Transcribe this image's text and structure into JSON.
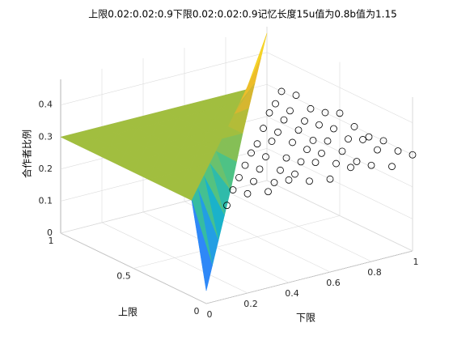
{
  "chart_data": {
    "type": "surface3d",
    "title": "上限0.02:0.02:0.9下限0.02:0.02:0.9记忆长度15u值为0.8b值为1.15",
    "xlabel": "下限",
    "ylabel": "上限",
    "zlabel": "合作者比例",
    "x": [
      0,
      0.1,
      0.2,
      0.3,
      0.4,
      0.5,
      0.6,
      0.7,
      0.8,
      0.9,
      1
    ],
    "y": [
      0,
      0.1,
      0.2,
      0.3,
      0.4,
      0.5,
      0.6,
      0.7,
      0.8,
      0.9,
      1
    ],
    "xlim": [
      0,
      1
    ],
    "ylim": [
      0,
      1
    ],
    "zlim": [
      0,
      0.48
    ],
    "xticks": [
      0,
      0.2,
      0.4,
      0.6,
      0.8,
      1
    ],
    "yticks": [
      0,
      0.5,
      1
    ],
    "zticks": [
      0,
      0.1,
      0.2,
      0.3,
      0.4
    ],
    "grid": true,
    "colormap": [
      "#3e26a8",
      "#4752f0",
      "#2b8ef8",
      "#18b5c6",
      "#4ec285",
      "#a5be3b",
      "#eab32b",
      "#f9df25",
      "#f9fb15"
    ],
    "surface": [
      [
        0.04,
        null,
        null,
        null,
        null,
        null,
        null,
        null,
        null,
        null,
        null
      ],
      [
        0.3,
        0.08,
        null,
        null,
        null,
        null,
        null,
        null,
        null,
        null,
        null
      ],
      [
        0.3,
        0.3,
        0.12,
        null,
        null,
        null,
        null,
        null,
        null,
        null,
        null
      ],
      [
        0.3,
        0.3,
        0.3,
        0.16,
        null,
        null,
        null,
        null,
        null,
        null,
        null
      ],
      [
        0.3,
        0.3,
        0.3,
        0.3,
        0.2,
        null,
        null,
        null,
        null,
        null,
        null
      ],
      [
        0.3,
        0.3,
        0.3,
        0.3,
        0.3,
        0.25,
        null,
        null,
        null,
        null,
        null
      ],
      [
        0.3,
        0.3,
        0.3,
        0.3,
        0.3,
        0.3,
        0.3,
        null,
        null,
        null,
        null
      ],
      [
        0.3,
        0.3,
        0.3,
        0.3,
        0.3,
        0.3,
        0.3,
        0.34,
        null,
        null,
        null
      ],
      [
        0.3,
        0.3,
        0.3,
        0.3,
        0.3,
        0.3,
        0.3,
        0.3,
        0.38,
        null,
        null
      ],
      [
        0.3,
        0.3,
        0.3,
        0.3,
        0.3,
        0.3,
        0.3,
        0.3,
        0.3,
        0.42,
        null
      ],
      [
        0.3,
        0.3,
        0.3,
        0.3,
        0.3,
        0.3,
        0.3,
        0.3,
        0.3,
        0.3,
        0.46
      ]
    ],
    "scatter": [
      [
        null,
        0.29,
        0.31,
        0.3,
        0.32,
        0.3,
        0.29,
        0.31,
        0.3,
        0.28,
        0.3
      ],
      [
        null,
        null,
        0.3,
        0.31,
        0.29,
        0.3,
        0.32,
        0.3,
        0.29,
        0.31,
        0.29
      ],
      [
        null,
        null,
        null,
        0.3,
        0.31,
        0.29,
        0.3,
        0.31,
        0.3,
        0.32,
        0.3
      ],
      [
        null,
        null,
        null,
        null,
        0.3,
        0.31,
        0.29,
        0.3,
        0.31,
        0.3,
        0.29
      ],
      [
        null,
        null,
        null,
        null,
        null,
        0.3,
        0.32,
        0.3,
        0.29,
        0.31,
        0.3
      ],
      [
        null,
        null,
        null,
        null,
        null,
        null,
        0.29,
        0.31,
        0.3,
        0.3,
        0.32
      ],
      [
        null,
        null,
        null,
        null,
        null,
        null,
        null,
        0.3,
        0.31,
        0.29,
        0.3
      ],
      [
        null,
        null,
        null,
        null,
        null,
        null,
        null,
        null,
        0.31,
        0.3,
        0.29
      ],
      [
        null,
        null,
        null,
        null,
        null,
        null,
        null,
        null,
        null,
        0.3,
        0.31
      ],
      [
        null,
        null,
        null,
        null,
        null,
        null,
        null,
        null,
        null,
        null,
        0.3
      ],
      [
        null,
        null,
        null,
        null,
        null,
        null,
        null,
        null,
        null,
        null,
        null
      ]
    ]
  }
}
